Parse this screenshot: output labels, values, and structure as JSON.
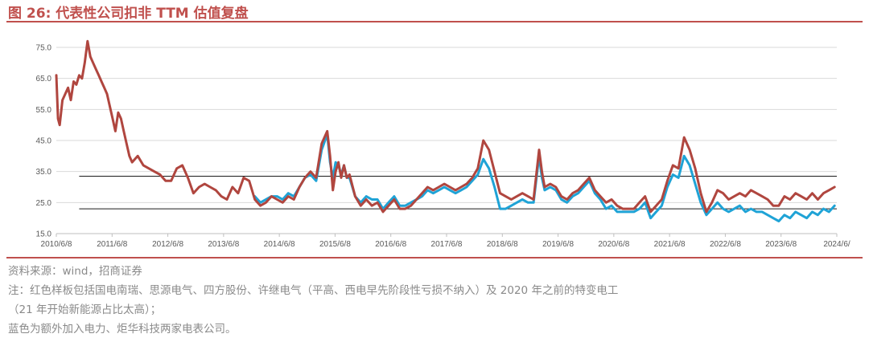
{
  "title": "图 26:  代表性公司扣非 TTM 估值复盘",
  "source": "资料来源：wind，招商证券",
  "note_line1": "注：红色样板包括国电南瑞、思源电气、四方股份、许继电气（平高、西电早先阶段性亏损不纳入）及 2020 年之前的特变电工",
  "note_line2": "（21 年开始新能源占比太高）；",
  "note_line3": "蓝色为额外加入电力、炬华科技两家电表公司。",
  "colors": {
    "red_series": "#b0463f",
    "blue_series": "#1fa3d6",
    "accent": "#c0504d"
  },
  "chart_data": {
    "type": "line",
    "ylim": [
      15,
      75
    ],
    "yticks": [
      "75.0",
      "65.0",
      "55.0",
      "45.0",
      "35.0",
      "25.0",
      "15.0"
    ],
    "xlim": [
      2010.44,
      2024.44
    ],
    "xticks": [
      "2010/6/8",
      "2011/6/8",
      "2012/6/8",
      "2013/6/8",
      "2014/6/8",
      "2015/6/8",
      "2016/6/8",
      "2017/6/8",
      "2018/6/8",
      "2019/6/8",
      "2020/6/8",
      "2021/6/8",
      "2022/6/8",
      "2023/6/8",
      "2024/6/"
    ],
    "reference_lines": [
      33.5,
      23.0
    ],
    "series": [
      {
        "color": "#b0463f",
        "x": [
          2010.44,
          2010.47,
          2010.5,
          2010.55,
          2010.6,
          2010.65,
          2010.7,
          2010.75,
          2010.8,
          2010.85,
          2010.9,
          2010.95,
          2011.0,
          2011.05,
          2011.1,
          2011.15,
          2011.2,
          2011.25,
          2011.3,
          2011.35,
          2011.4,
          2011.45,
          2011.5,
          2011.55,
          2011.6,
          2011.65,
          2011.7,
          2011.75,
          2011.8,
          2011.9,
          2012.0,
          2012.1,
          2012.2,
          2012.3,
          2012.4,
          2012.5,
          2012.6,
          2012.7,
          2012.8,
          2012.9,
          2013.0,
          2013.1,
          2013.2,
          2013.3,
          2013.4,
          2013.5,
          2013.6,
          2013.7,
          2013.8,
          2013.9,
          2014.0,
          2014.1,
          2014.2,
          2014.3,
          2014.4,
          2014.5,
          2014.6,
          2014.7,
          2014.8,
          2014.9,
          2015.0,
          2015.1,
          2015.2,
          2015.3,
          2015.35,
          2015.4,
          2015.45,
          2015.5,
          2015.55,
          2015.6,
          2015.65,
          2015.7,
          2015.8,
          2015.9,
          2016.0,
          2016.1,
          2016.2,
          2016.3,
          2016.4,
          2016.5,
          2016.6,
          2016.7,
          2016.8,
          2016.9,
          2017.0,
          2017.1,
          2017.2,
          2017.3,
          2017.4,
          2017.5,
          2017.6,
          2017.7,
          2017.8,
          2017.9,
          2018.0,
          2018.1,
          2018.2,
          2018.3,
          2018.4,
          2018.5,
          2018.6,
          2018.7,
          2018.8,
          2018.9,
          2019.0,
          2019.1,
          2019.15,
          2019.2,
          2019.3,
          2019.4,
          2019.5,
          2019.6,
          2019.7,
          2019.8,
          2019.9,
          2020.0,
          2020.1,
          2020.2,
          2020.3,
          2020.4,
          2020.5,
          2020.6,
          2020.7,
          2020.8,
          2020.9,
          2021.0,
          2021.1,
          2021.2,
          2021.3,
          2021.4,
          2021.5,
          2021.6,
          2021.7,
          2021.8,
          2021.9,
          2022.0,
          2022.1,
          2022.2,
          2022.3,
          2022.4,
          2022.5,
          2022.6,
          2022.7,
          2022.8,
          2022.9,
          2023.0,
          2023.1,
          2023.2,
          2023.3,
          2023.4,
          2023.5,
          2023.6,
          2023.7,
          2023.8,
          2023.9,
          2024.0,
          2024.1,
          2024.2,
          2024.3,
          2024.4
        ],
        "y": [
          66,
          52,
          50,
          58,
          60,
          62,
          58,
          64,
          63,
          66,
          65,
          70,
          77,
          72,
          70,
          68,
          66,
          64,
          62,
          60,
          56,
          52,
          48,
          54,
          52,
          48,
          44,
          40,
          38,
          40,
          37,
          36,
          35,
          34,
          32,
          32,
          36,
          37,
          33,
          28,
          30,
          31,
          30,
          29,
          27,
          26,
          30,
          28,
          33,
          32,
          26,
          24,
          25,
          27,
          26,
          25,
          27,
          26,
          30,
          33,
          35,
          33,
          44,
          48,
          40,
          29,
          35,
          38,
          33,
          37,
          33,
          34,
          27,
          24,
          26,
          24,
          25,
          22,
          24,
          26,
          23,
          23,
          24,
          26,
          28,
          30,
          29,
          30,
          31,
          30,
          29,
          30,
          31,
          33,
          36,
          45,
          42,
          35,
          28,
          27,
          26,
          27,
          28,
          27,
          26,
          42,
          35,
          30,
          31,
          30,
          27,
          26,
          28,
          29,
          31,
          33,
          29,
          27,
          25,
          26,
          24,
          23,
          23,
          23,
          25,
          27,
          22,
          24,
          26,
          32,
          37,
          36,
          46,
          42,
          36,
          28,
          22,
          25,
          29,
          28,
          26,
          27,
          28,
          27,
          29,
          28,
          27,
          26,
          24,
          24,
          27,
          26,
          28,
          27,
          26,
          28,
          26,
          28,
          29,
          30
        ]
      },
      {
        "color": "#1fa3d6",
        "x": [
          2014.0,
          2014.1,
          2014.2,
          2014.3,
          2014.4,
          2014.5,
          2014.6,
          2014.7,
          2014.8,
          2014.9,
          2015.0,
          2015.1,
          2015.2,
          2015.3,
          2015.35,
          2015.4,
          2015.45,
          2015.5,
          2015.55,
          2015.6,
          2015.65,
          2015.7,
          2015.8,
          2015.9,
          2016.0,
          2016.1,
          2016.2,
          2016.3,
          2016.4,
          2016.5,
          2016.6,
          2016.7,
          2016.8,
          2016.9,
          2017.0,
          2017.1,
          2017.2,
          2017.3,
          2017.4,
          2017.5,
          2017.6,
          2017.7,
          2017.8,
          2017.9,
          2018.0,
          2018.1,
          2018.2,
          2018.3,
          2018.4,
          2018.5,
          2018.6,
          2018.7,
          2018.8,
          2018.9,
          2019.0,
          2019.1,
          2019.15,
          2019.2,
          2019.3,
          2019.4,
          2019.5,
          2019.6,
          2019.7,
          2019.8,
          2019.9,
          2020.0,
          2020.1,
          2020.2,
          2020.3,
          2020.4,
          2020.5,
          2020.6,
          2020.7,
          2020.8,
          2020.9,
          2021.0,
          2021.1,
          2021.2,
          2021.3,
          2021.4,
          2021.5,
          2021.6,
          2021.7,
          2021.8,
          2021.9,
          2022.0,
          2022.1,
          2022.2,
          2022.3,
          2022.4,
          2022.5,
          2022.6,
          2022.7,
          2022.8,
          2022.9,
          2023.0,
          2023.1,
          2023.2,
          2023.3,
          2023.4,
          2023.5,
          2023.6,
          2023.7,
          2023.8,
          2023.9,
          2024.0,
          2024.1,
          2024.2,
          2024.3,
          2024.4
        ],
        "y": [
          27,
          25,
          26,
          27,
          27,
          26,
          28,
          27,
          30,
          33,
          34,
          32,
          42,
          47,
          38,
          33,
          38,
          37,
          34,
          37,
          33,
          33,
          27,
          25,
          27,
          26,
          26,
          23,
          25,
          27,
          24,
          24,
          25,
          26,
          27,
          29,
          28,
          29,
          30,
          29,
          28,
          29,
          30,
          32,
          34,
          39,
          36,
          30,
          23,
          23,
          24,
          25,
          26,
          25,
          25,
          40,
          33,
          29,
          30,
          29,
          26,
          25,
          27,
          28,
          30,
          32,
          28,
          26,
          23,
          24,
          22,
          22,
          22,
          22,
          23,
          25,
          20,
          22,
          24,
          30,
          34,
          33,
          40,
          37,
          31,
          25,
          21,
          23,
          25,
          23,
          22,
          23,
          24,
          22,
          23,
          22,
          22,
          21,
          20,
          19,
          21,
          20,
          22,
          21,
          20,
          22,
          21,
          23,
          22,
          24
        ]
      }
    ]
  }
}
